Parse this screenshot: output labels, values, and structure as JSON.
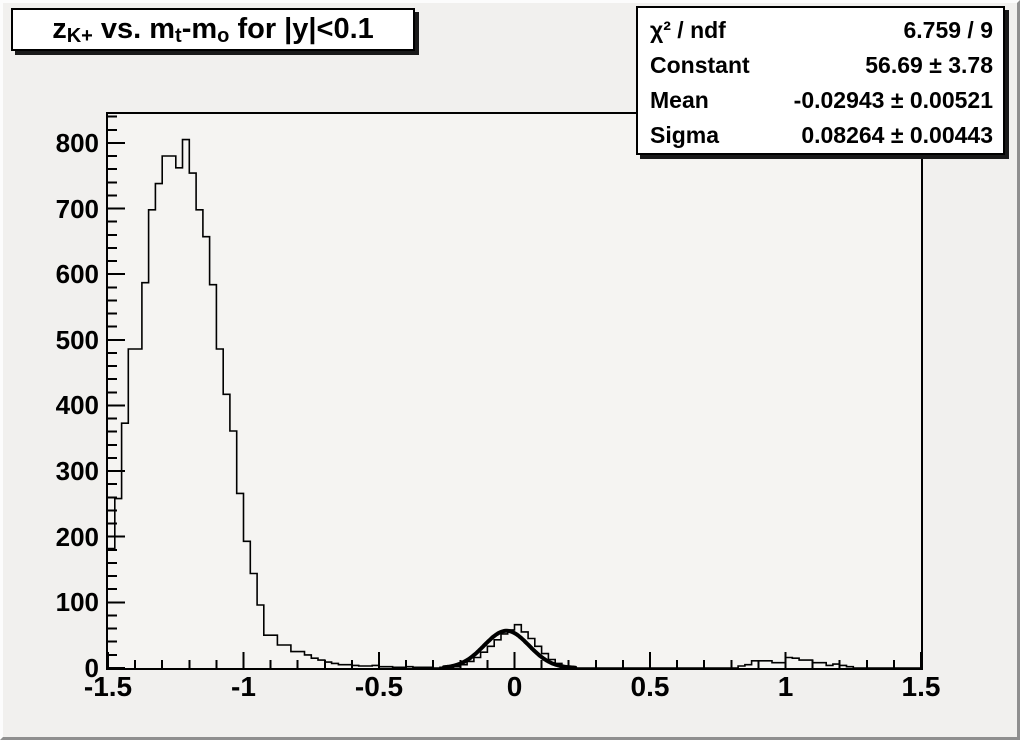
{
  "page": {
    "bg_color": "#f1f0ee",
    "frame_bg_color": "#f5f4f2",
    "hist_line_color": "#000000",
    "fit_line_color": "#000000",
    "pave_bg_color": "#ffffff",
    "pave_shadow_color": "#1a1a1a"
  },
  "title": {
    "segments": [
      {
        "text": "z"
      },
      {
        "sub": "K+"
      },
      {
        "text": " vs. m"
      },
      {
        "sub": "t"
      },
      {
        "text": "-m"
      },
      {
        "sub": "o"
      },
      {
        "text": " for |y|<0.1"
      }
    ],
    "plain": "zK+ vs. mt-mo for |y|<0.1"
  },
  "stats": {
    "rows": [
      {
        "label": "χ² / ndf",
        "value": "6.759 / 9"
      },
      {
        "label": "Constant",
        "value": "56.69 ± 3.78"
      },
      {
        "label": "Mean",
        "value": "-0.02943 ± 0.00521"
      },
      {
        "label": "Sigma",
        "value": "0.08264 ± 0.00443"
      }
    ]
  },
  "axes": {
    "x": {
      "min": -1.5,
      "max": 1.5,
      "major_ticks": [
        -1.5,
        -1,
        -0.5,
        0,
        0.5,
        1,
        1.5
      ],
      "tick_labels": [
        "-1.5",
        "-1",
        "-0.5",
        "0",
        "0.5",
        "1",
        "1.5"
      ],
      "minor_step": 0.1
    },
    "y": {
      "min": 0,
      "max": 844,
      "major_ticks": [
        0,
        100,
        200,
        300,
        400,
        500,
        600,
        700,
        800
      ],
      "tick_labels": [
        "0",
        "100",
        "200",
        "300",
        "400",
        "500",
        "600",
        "700",
        "800"
      ],
      "minor_step": 20
    }
  },
  "chart_data": {
    "type": "histogram",
    "xlabel": "",
    "ylabel": "",
    "xlim": [
      -1.5,
      1.5
    ],
    "ylim": [
      0,
      844
    ],
    "x_start": -1.5,
    "bin_width": 0.025,
    "bins": [
      182,
      258,
      373,
      486,
      486,
      587,
      698,
      738,
      780,
      780,
      762,
      805,
      754,
      698,
      657,
      584,
      486,
      417,
      361,
      266,
      193,
      144,
      96,
      50,
      50,
      35,
      35,
      25,
      25,
      20,
      15,
      12,
      9,
      7,
      5,
      5,
      4,
      3,
      3,
      4,
      2,
      2,
      1,
      1,
      2,
      1,
      1,
      1,
      0,
      1,
      1,
      2,
      5,
      10,
      16,
      24,
      33,
      43,
      52,
      58,
      66,
      55,
      45,
      33,
      22,
      13,
      7,
      3,
      1,
      0,
      0,
      0,
      0,
      0,
      0,
      0,
      0,
      0,
      0,
      0,
      0,
      0,
      0,
      0,
      0,
      0,
      0,
      0,
      0,
      0,
      0,
      0,
      0,
      3,
      5,
      11,
      11,
      11,
      8,
      8,
      16,
      15,
      12,
      12,
      8,
      8,
      4,
      6,
      4,
      2,
      0,
      0,
      0,
      0,
      0,
      0,
      0,
      0,
      0,
      0
    ],
    "fit": {
      "type": "gaussian",
      "constant": 56.69,
      "mean": -0.02943,
      "sigma": 0.08264,
      "chi2": 6.759,
      "ndf": 9,
      "draw_range": [
        -0.26,
        0.225
      ]
    },
    "legend_position": "none",
    "grid": false
  }
}
